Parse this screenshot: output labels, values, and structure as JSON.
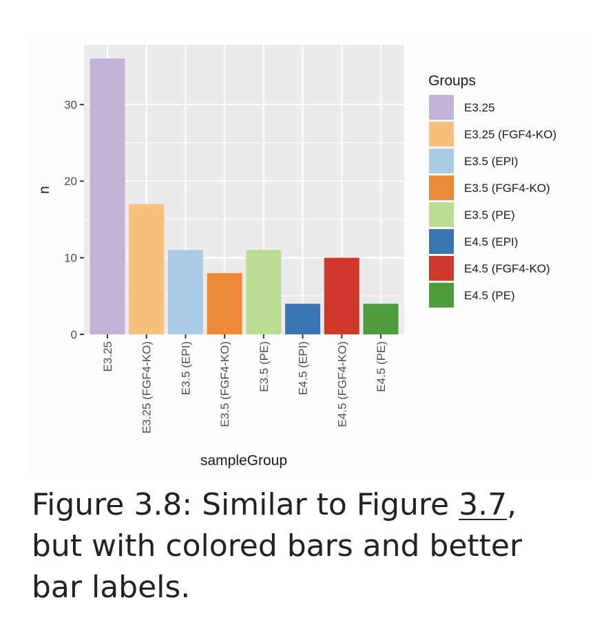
{
  "chart_data": {
    "type": "bar",
    "categories": [
      "E3.25",
      "E3.25 (FGF4-KO)",
      "E3.5 (EPI)",
      "E3.5 (FGF4-KO)",
      "E3.5 (PE)",
      "E4.5 (EPI)",
      "E4.5 (FGF4-KO)",
      "E4.5 (PE)"
    ],
    "values": [
      36,
      17,
      11,
      8,
      11,
      4,
      10,
      4
    ],
    "colors": [
      "#c2b3d6",
      "#f6c07d",
      "#abcde3",
      "#ee8a36",
      "#bbdd93",
      "#3a76b4",
      "#d03a2d",
      "#4f9c3e"
    ],
    "xlabel": "sampleGroup",
    "ylabel": "n",
    "ylim": [
      0,
      37.8
    ],
    "yticks": [
      0,
      10,
      20,
      30
    ],
    "grid": true,
    "background": "#ebebeb",
    "legend": {
      "title": "Groups",
      "placement": "right",
      "entries": [
        "E3.25",
        "E3.25 (FGF4-KO)",
        "E3.5 (EPI)",
        "E3.5 (FGF4-KO)",
        "E3.5 (PE)",
        "E4.5 (EPI)",
        "E4.5 (FGF4-KO)",
        "E4.5 (PE)"
      ]
    }
  },
  "caption": {
    "prefix": "Figure 3.8: Similar to Figure ",
    "link_text": "3.7",
    "suffix": ", but with colored bars and better bar labels."
  }
}
